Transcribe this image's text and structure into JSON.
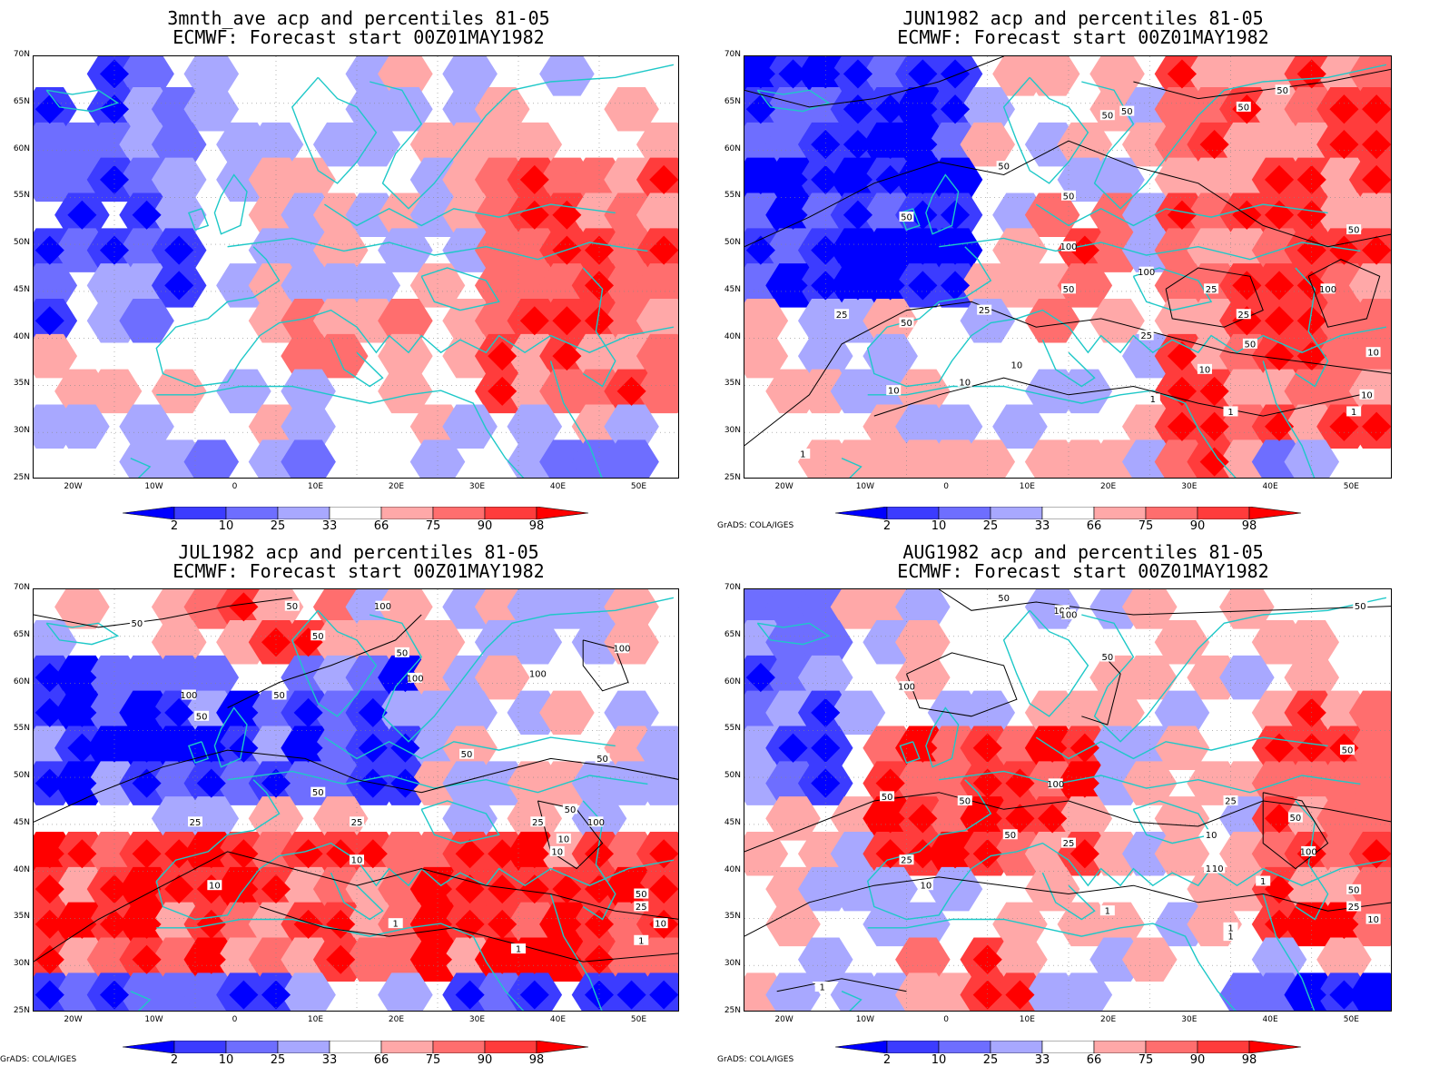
{
  "panels": [
    {
      "id": "p1",
      "line1": "3mnth_ave acp and percentiles 81-05",
      "line2": "ECMWF: Forecast start 00Z01MAY1982",
      "credit": "",
      "contours": false
    },
    {
      "id": "p2",
      "line1": "JUN1982 acp and percentiles 81-05",
      "line2": "ECMWF: Forecast start 00Z01MAY1982",
      "credit": "GrADS: COLA/IGES",
      "contours": true
    },
    {
      "id": "p3",
      "line1": "JUL1982 acp and percentiles 81-05",
      "line2": "ECMWF: Forecast start 00Z01MAY1982",
      "credit": "GrADS: COLA/IGES",
      "contours": true
    },
    {
      "id": "p4",
      "line1": "AUG1982 acp and percentiles 81-05",
      "line2": "ECMWF: Forecast start 00Z01MAY1982",
      "credit": "GrADS: COLA/IGES",
      "contours": true
    }
  ],
  "axes": {
    "lat_ticks": [
      "70N",
      "65N",
      "60N",
      "55N",
      "50N",
      "45N",
      "40N",
      "35N",
      "30N",
      "25N"
    ],
    "lon_ticks": [
      "20W",
      "10W",
      "0",
      "10E",
      "20E",
      "30E",
      "40E",
      "50E"
    ],
    "lon_range": [
      -25,
      55
    ],
    "lat_range": [
      25,
      70
    ]
  },
  "colorbar": {
    "labels": [
      "2",
      "10",
      "25",
      "33",
      "66",
      "75",
      "90",
      "98"
    ],
    "colors": [
      "#0000ff",
      "#3c3cff",
      "#6e6eff",
      "#a8a8ff",
      "#ffffff",
      "#ffa8a8",
      "#ff6e6e",
      "#ff3c3c",
      "#ff0000"
    ]
  },
  "contour_labels": {
    "p2": [
      "50",
      "50",
      "50",
      "50",
      "50",
      "50",
      "50",
      "100",
      "100",
      "100",
      "50",
      "25",
      "25",
      "25",
      "50",
      "25",
      "50",
      "50",
      "25",
      "10",
      "10",
      "10",
      "10",
      "1",
      "1",
      "1",
      "10",
      "1",
      "10"
    ],
    "p3": [
      "50",
      "100",
      "50",
      "100",
      "100",
      "50",
      "50",
      "100",
      "50",
      "50",
      "100",
      "50",
      "50",
      "50",
      "25",
      "25",
      "25",
      "10",
      "100",
      "10",
      "10",
      "1",
      "1",
      "50",
      "25",
      "10",
      "1",
      "10",
      "50"
    ],
    "p4": [
      "50",
      "100",
      "50",
      "50",
      "100",
      "100",
      "50",
      "50",
      "50",
      "50",
      "25",
      "25",
      "10",
      "1",
      "1",
      "1",
      "100",
      "25",
      "50",
      "10",
      "10",
      "100",
      "50",
      "25",
      "10",
      "1",
      "10",
      "1"
    ]
  }
}
